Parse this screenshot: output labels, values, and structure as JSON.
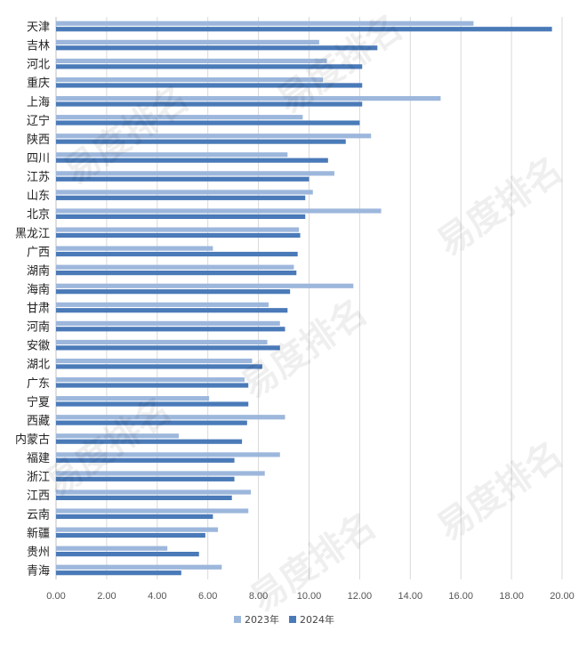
{
  "chart_data": {
    "type": "bar",
    "orientation": "horizontal",
    "categories": [
      "天津",
      "吉林",
      "河北",
      "重庆",
      "上海",
      "辽宁",
      "陕西",
      "四川",
      "江苏",
      "山东",
      "北京",
      "黑龙江",
      "广西",
      "湖南",
      "海南",
      "甘肃",
      "河南",
      "安徽",
      "湖北",
      "广东",
      "宁夏",
      "西藏",
      "内蒙古",
      "福建",
      "浙江",
      "江西",
      "云南",
      "新疆",
      "贵州",
      "青海"
    ],
    "series": [
      {
        "name": "2023年",
        "color": "#9db7dc",
        "values": [
          16.5,
          10.4,
          10.7,
          10.55,
          15.2,
          9.75,
          12.45,
          9.15,
          11.0,
          10.15,
          12.85,
          9.6,
          6.2,
          9.4,
          11.75,
          8.4,
          8.85,
          8.35,
          7.75,
          7.45,
          6.05,
          9.05,
          4.85,
          8.85,
          8.25,
          7.7,
          7.6,
          6.4,
          4.4,
          6.55
        ]
      },
      {
        "name": "2024年",
        "color": "#4a7ab8",
        "values": [
          19.6,
          12.7,
          12.1,
          12.1,
          12.1,
          12.0,
          11.45,
          10.75,
          10.0,
          9.85,
          9.85,
          9.65,
          9.55,
          9.5,
          9.25,
          9.15,
          9.05,
          8.85,
          8.15,
          7.6,
          7.6,
          7.55,
          7.35,
          7.05,
          7.05,
          6.95,
          6.2,
          5.9,
          5.65,
          4.95
        ]
      }
    ],
    "x_ticks": [
      "0.00",
      "2.00",
      "4.00",
      "6.00",
      "8.00",
      "10.00",
      "12.00",
      "14.00",
      "16.00",
      "18.00",
      "20.00"
    ],
    "xlim": [
      0,
      20
    ],
    "grid": "vertical",
    "legend_position": "bottom-center",
    "title": "",
    "xlabel": "",
    "ylabel": ""
  },
  "watermark": {
    "text": "易度排名",
    "subtext": "EDU Ranking.cn"
  }
}
